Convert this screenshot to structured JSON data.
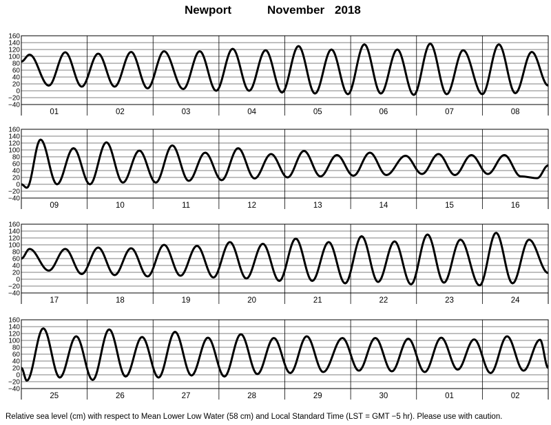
{
  "title": {
    "station": "Newport",
    "month": "November",
    "year": "2018"
  },
  "footnote": "Relative sea level (cm) with respect to Mean Lower Low Water (58 cm) and Local Standard Time (LST = GMT −5 hr). Please use with caution.",
  "chart_data": [
    {
      "type": "line",
      "title": "",
      "xlabel": "",
      "ylabel": "",
      "ylim": [
        -40,
        160
      ],
      "yticks": [
        "160",
        "140",
        "120",
        "100",
        "80",
        "60",
        "40",
        "20",
        "0",
        "−20",
        "−40"
      ],
      "grid": true,
      "categories": [
        "01",
        "02",
        "03",
        "04",
        "05",
        "06",
        "07",
        "08"
      ],
      "x_unit": "hour of day (LST), 0 = start of first day",
      "series": [
        {
          "x": [
            0,
            3,
            10,
            16,
            22,
            28,
            34,
            40,
            46,
            52,
            59,
            65,
            71,
            77,
            83,
            89,
            95,
            101,
            107,
            113,
            119,
            125,
            131,
            137,
            143,
            149,
            155,
            161,
            168,
            174,
            180,
            186,
            192
          ],
          "values": [
            85,
            105,
            15,
            112,
            12,
            108,
            12,
            113,
            7,
            115,
            5,
            115,
            0,
            122,
            0,
            118,
            -5,
            130,
            -8,
            120,
            -10,
            135,
            -8,
            120,
            -12,
            137,
            -10,
            118,
            -10,
            135,
            -7,
            113,
            15
          ]
        }
      ]
    },
    {
      "type": "line",
      "title": "",
      "xlabel": "",
      "ylabel": "",
      "ylim": [
        -40,
        160
      ],
      "yticks": [
        "160",
        "140",
        "120",
        "100",
        "80",
        "60",
        "40",
        "20",
        "0",
        "−20",
        "−40"
      ],
      "grid": true,
      "categories": [
        "09",
        "10",
        "11",
        "12",
        "13",
        "14",
        "15",
        "16"
      ],
      "x_unit": "hour of day (LST), 0 = start of first day",
      "series": [
        {
          "x": [
            0,
            2,
            7,
            13,
            19,
            25,
            31,
            37,
            43,
            49,
            55,
            61,
            67,
            73,
            79,
            85,
            91,
            97,
            103,
            109,
            115,
            121,
            127,
            133,
            140,
            146,
            152,
            158,
            164,
            170,
            176,
            182,
            188,
            192
          ],
          "values": [
            0,
            -10,
            130,
            0,
            105,
            0,
            122,
            5,
            98,
            5,
            113,
            10,
            92,
            12,
            105,
            17,
            88,
            20,
            97,
            23,
            85,
            25,
            92,
            27,
            83,
            30,
            88,
            27,
            85,
            30,
            85,
            23,
            18,
            55
          ]
        }
      ]
    },
    {
      "type": "line",
      "title": "",
      "xlabel": "",
      "ylabel": "",
      "ylim": [
        -40,
        160
      ],
      "yticks": [
        "160",
        "140",
        "120",
        "100",
        "80",
        "60",
        "40",
        "20",
        "0",
        "−20",
        "−40"
      ],
      "grid": true,
      "categories": [
        "17",
        "18",
        "19",
        "20",
        "21",
        "22",
        "23",
        "24"
      ],
      "x_unit": "hour of day (LST), 0 = start of first day",
      "series": [
        {
          "x": [
            0,
            3,
            10,
            16,
            22,
            28,
            34,
            40,
            46,
            52,
            58,
            64,
            70,
            76,
            82,
            88,
            94,
            100,
            106,
            112,
            118,
            124,
            130,
            136,
            142,
            148,
            154,
            160,
            167,
            173,
            179,
            185,
            192
          ],
          "values": [
            60,
            88,
            25,
            88,
            15,
            92,
            12,
            90,
            8,
            100,
            10,
            97,
            5,
            108,
            2,
            103,
            -5,
            118,
            -5,
            108,
            -12,
            125,
            -8,
            110,
            -15,
            130,
            -10,
            115,
            -18,
            135,
            -12,
            115,
            18
          ]
        }
      ]
    },
    {
      "type": "line",
      "title": "",
      "xlabel": "",
      "ylabel": "",
      "ylim": [
        -40,
        160
      ],
      "yticks": [
        "160",
        "140",
        "120",
        "100",
        "80",
        "60",
        "40",
        "20",
        "0",
        "−20",
        "−40"
      ],
      "grid": true,
      "categories": [
        "25",
        "26",
        "27",
        "28",
        "29",
        "30",
        "01",
        "02"
      ],
      "x_unit": "hour of day (LST), 0 = start of first day",
      "series": [
        {
          "x": [
            0,
            2,
            8,
            14,
            20,
            26,
            32,
            38,
            44,
            50,
            56,
            62,
            68,
            74,
            80,
            86,
            92,
            98,
            104,
            110,
            117,
            123,
            129,
            135,
            141,
            147,
            153,
            159,
            165,
            171,
            177,
            183,
            189,
            192
          ],
          "values": [
            20,
            -17,
            135,
            -8,
            112,
            -15,
            132,
            -5,
            110,
            -8,
            125,
            -2,
            108,
            -5,
            118,
            2,
            107,
            5,
            112,
            8,
            107,
            12,
            107,
            10,
            105,
            8,
            108,
            15,
            103,
            5,
            112,
            12,
            102,
            20
          ]
        }
      ]
    }
  ]
}
